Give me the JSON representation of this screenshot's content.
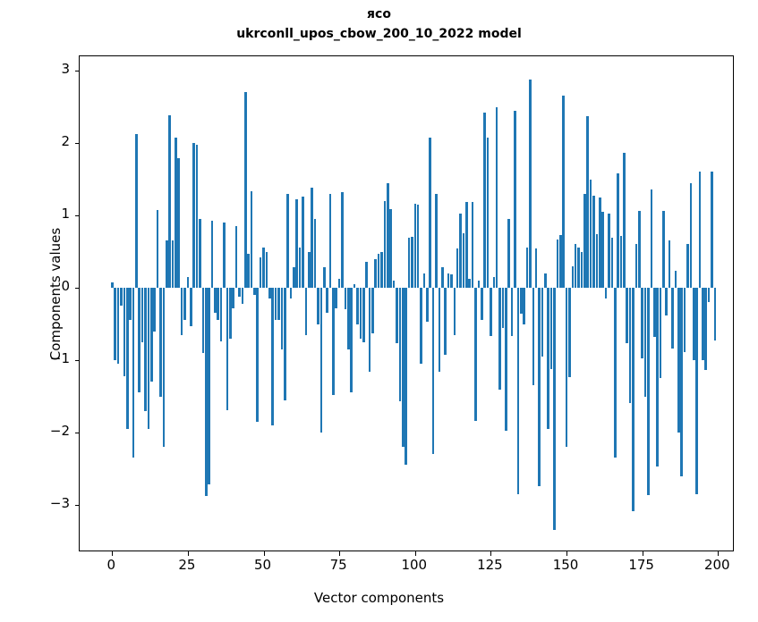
{
  "title_line1": "ясо",
  "title_line2": "ukrconll_upos_cbow_200_10_2022 model",
  "chart_data": {
    "type": "bar",
    "title": "ясо",
    "subtitle": "ukrconll_upos_cbow_200_10_2022 model",
    "xlabel": "Vector components",
    "ylabel": "Components values",
    "bar_color": "#1f77b4",
    "grid": false,
    "legend": "none",
    "xlim": [
      -10.7,
      205.5
    ],
    "ylim": [
      -3.65,
      3.2
    ],
    "x_ticks": [
      0,
      25,
      50,
      75,
      100,
      125,
      150,
      175,
      200
    ],
    "y_ticks": [
      -3,
      -2,
      -1,
      0,
      1,
      2,
      3
    ],
    "y_tick_labels": [
      "−3",
      "−2",
      "−1",
      "0",
      "1",
      "2",
      "3"
    ],
    "x_tick_labels": [
      "0",
      "25",
      "50",
      "75",
      "100",
      "125",
      "150",
      "175",
      "200"
    ],
    "x": "component index 0..199",
    "values": [
      0.08,
      -1.0,
      -1.05,
      -0.25,
      -1.22,
      -1.95,
      -0.45,
      -2.35,
      2.12,
      -1.45,
      -0.75,
      -1.7,
      -1.95,
      -1.3,
      -0.6,
      1.08,
      -1.5,
      -2.2,
      0.65,
      2.38,
      0.66,
      2.08,
      1.79,
      -0.65,
      -0.45,
      0.15,
      -0.53,
      2.0,
      1.97,
      0.95,
      -0.9,
      -2.88,
      -2.72,
      0.93,
      -0.35,
      -0.45,
      -0.74,
      0.9,
      -1.69,
      -0.7,
      -0.28,
      0.85,
      -0.12,
      -0.22,
      2.7,
      0.47,
      1.33,
      -0.1,
      -1.85,
      0.42,
      0.55,
      0.5,
      -0.15,
      -1.9,
      -0.45,
      -0.45,
      -0.85,
      -1.55,
      1.3,
      -0.15,
      0.28,
      1.22,
      0.55,
      1.26,
      -0.65,
      0.5,
      1.38,
      0.95,
      -0.5,
      -2.0,
      0.28,
      -0.35,
      1.3,
      -1.48,
      -0.28,
      0.12,
      1.32,
      -0.3,
      -0.85,
      -1.45,
      0.05,
      -0.5,
      -0.7,
      -0.75,
      0.36,
      -1.16,
      -0.63,
      0.4,
      0.47,
      0.5,
      1.2,
      1.45,
      1.09,
      0.1,
      -0.77,
      -1.57,
      -2.2,
      -2.45,
      0.69,
      0.7,
      1.16,
      1.15,
      -1.05,
      0.2,
      -0.47,
      2.08,
      -2.3,
      1.3,
      -1.16,
      0.28,
      -0.93,
      0.2,
      0.18,
      -0.66,
      0.54,
      1.02,
      0.75,
      1.19,
      0.12,
      1.19,
      -1.84,
      0.1,
      -0.45,
      2.42,
      2.07,
      -0.67,
      0.15,
      2.49,
      -1.41,
      -0.56,
      -1.98,
      0.95,
      -0.67,
      2.45,
      -2.85,
      -0.36,
      -0.5,
      0.55,
      2.88,
      -1.35,
      0.54,
      -2.74,
      -0.95,
      0.2,
      -1.95,
      -1.12,
      -3.35,
      0.67,
      0.73,
      2.65,
      -2.2,
      -1.23,
      0.3,
      0.6,
      0.55,
      0.5,
      1.3,
      2.37,
      1.5,
      1.27,
      0.74,
      1.25,
      1.05,
      -0.15,
      1.03,
      0.69,
      -2.35,
      1.58,
      0.72,
      1.86,
      -0.77,
      -1.59,
      -3.09,
      0.61,
      1.06,
      -0.98,
      -1.51,
      -2.87,
      1.36,
      -0.68,
      -2.47,
      -1.25,
      1.06,
      -0.38,
      0.65,
      -0.84,
      0.24,
      -2.0,
      -2.6,
      -0.89,
      0.6,
      1.45,
      -1.0,
      -2.85,
      1.6,
      -1.0,
      -1.14,
      -0.2,
      1.6,
      -0.73
    ]
  }
}
